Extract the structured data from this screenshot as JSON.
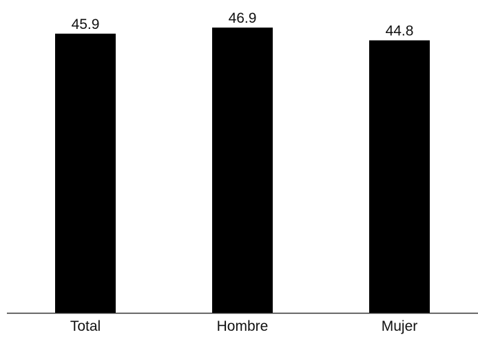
{
  "chart_data": {
    "type": "bar",
    "categories": [
      "Total",
      "Hombre",
      "Mujer"
    ],
    "values": [
      45.9,
      46.9,
      44.8
    ],
    "value_labels": [
      "45.9",
      "46.9",
      "44.8"
    ],
    "title": "",
    "xlabel": "",
    "ylabel": "",
    "ylim": [
      0,
      46.9
    ],
    "grid": false,
    "legend": "none",
    "bar_color": "#000000",
    "axis_color": "#333333"
  }
}
